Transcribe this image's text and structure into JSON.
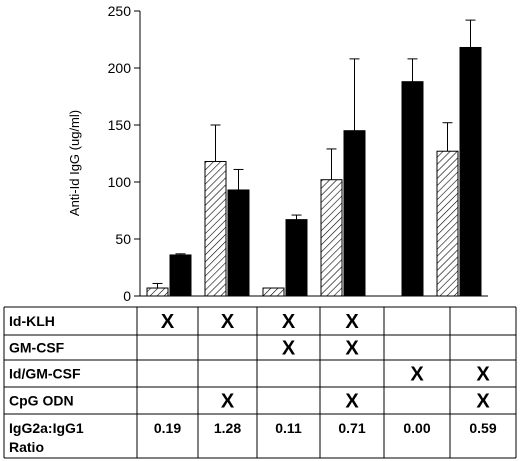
{
  "chart_data": {
    "type": "bar",
    "ylabel": "Anti-Id IgG (ug/ml)",
    "ylim": [
      0,
      250
    ],
    "yticks": [
      "0",
      "50",
      "100",
      "150",
      "200",
      "250"
    ],
    "pattern": {
      "series_0": "hatched",
      "series_1": "solid"
    },
    "colors": {
      "series_0_stroke": "#000000",
      "series_1_fill": "#000000"
    },
    "groups": 6,
    "series": [
      {
        "values": [
          7,
          118,
          7,
          102,
          0,
          127
        ],
        "errors": [
          4,
          32,
          0,
          27,
          0,
          25
        ]
      },
      {
        "values": [
          36,
          93,
          67,
          145,
          188,
          218
        ],
        "errors": [
          1,
          18,
          4,
          63,
          20,
          24
        ]
      }
    ]
  },
  "table": {
    "rows": [
      {
        "label": "Id-KLH",
        "marks": [
          "X",
          "X",
          "X",
          "X",
          "",
          ""
        ]
      },
      {
        "label": "GM-CSF",
        "marks": [
          "",
          "",
          "X",
          "X",
          "",
          ""
        ]
      },
      {
        "label": "Id/GM-CSF",
        "marks": [
          "",
          "",
          "",
          "",
          "X",
          "X"
        ]
      },
      {
        "label": "CpG ODN",
        "marks": [
          "",
          "X",
          "",
          "X",
          "",
          "X"
        ]
      }
    ],
    "ratio_label_line1": "IgG2a:IgG1",
    "ratio_label_line2": "Ratio",
    "ratios": [
      "0.19",
      "1.28",
      "0.11",
      "0.71",
      "0.00",
      "0.59"
    ]
  }
}
